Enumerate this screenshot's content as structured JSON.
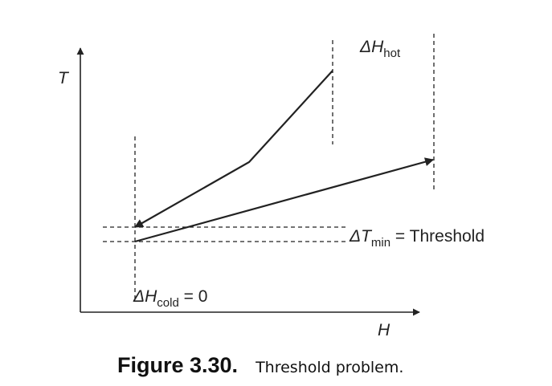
{
  "axes": {
    "y_label": "T",
    "x_label": "H"
  },
  "labels": {
    "delta_h_hot": {
      "symbol": "ΔH",
      "subscript": "hot"
    },
    "delta_t_min": {
      "symbol": "ΔT",
      "subscript": "min",
      "suffix": " = Threshold"
    },
    "delta_h_cold": {
      "symbol": "ΔH",
      "subscript": "cold",
      "suffix": " = 0"
    }
  },
  "caption": {
    "number": "Figure 3.30.",
    "text": "Threshold problem."
  },
  "colors": {
    "line": "#222222",
    "text": "#222222"
  }
}
